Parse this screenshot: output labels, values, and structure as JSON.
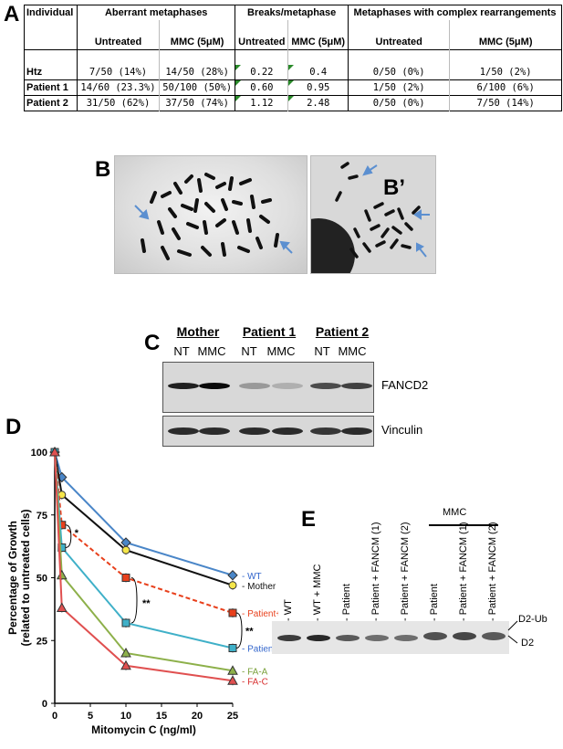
{
  "panelA": {
    "letter": "A",
    "header": {
      "individual": "Individual",
      "aberrant": "Aberrant metaphases",
      "breaks": "Breaks/metaphase",
      "complex": "Metaphases with complex rearrangements",
      "untreated": "Untreated",
      "mmc": "MMC (5μM)"
    },
    "rows": [
      {
        "name": "Htz",
        "ab_u": "7/50 (14%)",
        "ab_m": "14/50 (28%)",
        "br_u": "0.22",
        "br_m": "0.4",
        "cx_u": "0/50  (0%)",
        "cx_m": "1/50 (2%)"
      },
      {
        "name": "Patient 1",
        "ab_u": "14/60 (23.3%)",
        "ab_m": "50/100 (50%)",
        "br_u": "0.60",
        "br_m": "0.95",
        "cx_u": "1/50  (2%)",
        "cx_m": "6/100 (6%)"
      },
      {
        "name": "Patient 2",
        "ab_u": "31/50 (62%)",
        "ab_m": "37/50 (74%)",
        "br_u": "1.12",
        "br_m": "2.48",
        "cx_u": "0/50  (0%)",
        "cx_m": "7/50 (14%)"
      }
    ]
  },
  "panelB": {
    "letter": "B",
    "letter2": "B’"
  },
  "panelC": {
    "letter": "C",
    "groups": [
      "Mother",
      "Patient 1",
      "Patient 2"
    ],
    "lanes": [
      "NT",
      "MMC",
      "NT",
      "MMC",
      "NT",
      "MMC"
    ],
    "fancd2": "FANCD2",
    "vinculin": "Vinculin",
    "fancd2_intensity": [
      0.9,
      1.0,
      0.35,
      0.25,
      0.7,
      0.75
    ],
    "vinculin_intensity": [
      0.85,
      0.85,
      0.85,
      0.85,
      0.8,
      0.85
    ]
  },
  "panelD": {
    "letter": "D",
    "chart_data": {
      "type": "line",
      "xlabel": "Mitomycin C (ng/ml)",
      "ylabel": "Percentage of Growth (related to untreated cells)",
      "xlim": [
        0,
        25
      ],
      "ylim": [
        0,
        100
      ],
      "xticks": [
        0,
        5,
        10,
        15,
        20,
        25
      ],
      "yticks": [
        0,
        25,
        50,
        75,
        100
      ],
      "x": [
        0,
        1,
        10,
        25
      ],
      "series": [
        {
          "name": "WT",
          "values": [
            100,
            90,
            64,
            51
          ],
          "color": "#4a86c8",
          "marker": "diamond",
          "dash": false,
          "labelColor": "#3366cc"
        },
        {
          "name": "Mother",
          "values": [
            100,
            83,
            61,
            47
          ],
          "color": "#111111",
          "marker": "circle",
          "dash": false,
          "labelColor": "#111111"
        },
        {
          "name": "Patient+FANCM",
          "values": [
            100,
            71,
            50,
            36
          ],
          "color": "#e8401c",
          "marker": "square",
          "dash": true,
          "labelColor": "#e8401c"
        },
        {
          "name": "Patient",
          "values": [
            100,
            62,
            32,
            22
          ],
          "color": "#3fb0c8",
          "marker": "square",
          "dash": false,
          "labelColor": "#3366cc"
        },
        {
          "name": "FA-A",
          "values": [
            100,
            51,
            20,
            13
          ],
          "color": "#8db04a",
          "marker": "triangle",
          "dash": false,
          "labelColor": "#7aa03a"
        },
        {
          "name": "FA-C",
          "values": [
            100,
            38,
            15,
            9
          ],
          "color": "#e05050",
          "marker": "triangle",
          "dash": false,
          "labelColor": "#d83030"
        }
      ],
      "annotations": [
        "*",
        "**",
        "**"
      ]
    }
  },
  "panelE": {
    "letter": "E",
    "mmc_label": "MMC",
    "lanes": [
      "- WT",
      "- WT + MMC",
      "- Patient",
      "- Patient + FANCM (1)",
      "- Patient + FANCM (2)",
      "- Patient",
      "- Patient + FANCM (1)",
      "- Patient + FANCM (2)"
    ],
    "d2ub": "D2-Ub",
    "d2": "D2"
  }
}
